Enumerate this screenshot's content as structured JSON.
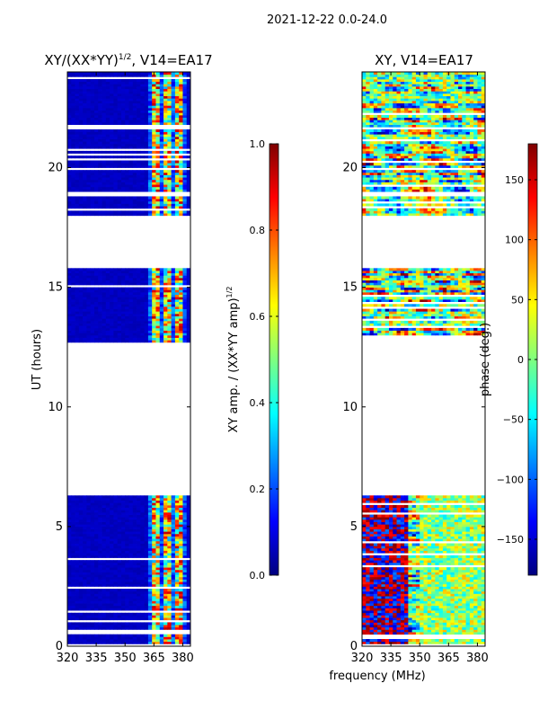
{
  "figure_title": "2021-12-22 0.0-24.0",
  "xlabel_shared": "frequency (MHz)",
  "colors": {
    "jet": [
      "#00007f",
      "#0000ff",
      "#007fff",
      "#00ffff",
      "#7fff7f",
      "#ffff00",
      "#ff7f00",
      "#ff0000",
      "#7f0000"
    ],
    "background": "#ffffff"
  },
  "chart_data": [
    {
      "type": "heatmap",
      "title": "XY/(XX*YY)",
      "title_superscript": "1/2",
      "title_suffix": ", V14=EA17",
      "xlabel": "",
      "ylabel": "UT (hours)",
      "xlim": [
        320,
        384
      ],
      "ylim": [
        0,
        24
      ],
      "xticks": [
        320,
        335,
        350,
        365,
        380
      ],
      "yticks": [
        0,
        5,
        10,
        15,
        20
      ],
      "z_range": [
        0.0,
        1.0
      ],
      "data_bands_hours": [
        [
          0.0,
          6.3
        ],
        [
          12.7,
          15.9
        ],
        [
          18.0,
          18.8
        ],
        [
          19.0,
          24.0
        ]
      ],
      "dominant_value": 0.05,
      "active_channel_range_mhz": [
        362,
        382
      ],
      "colorbar": {
        "label": "XY amp. / (XX*YY amp)",
        "label_superscript": "1/2",
        "range": [
          0.0,
          1.0
        ],
        "ticks": [
          "0.0",
          "0.2",
          "0.4",
          "0.6",
          "0.8",
          "1.0"
        ]
      }
    },
    {
      "type": "heatmap",
      "title": "XY, V14=EA17",
      "xlabel": "",
      "ylabel": "",
      "xlim": [
        320,
        384
      ],
      "ylim": [
        0,
        24
      ],
      "xticks": [
        320,
        335,
        350,
        365,
        380
      ],
      "yticks": [
        0,
        5,
        10,
        15,
        20
      ],
      "z_range": [
        -180,
        180
      ],
      "data_bands_hours": [
        [
          0.0,
          6.3
        ],
        [
          12.7,
          15.9
        ],
        [
          18.0,
          18.8
        ],
        [
          19.0,
          24.0
        ]
      ],
      "colorbar": {
        "label": "phase (deg.)",
        "range": [
          -180,
          180
        ],
        "ticks": [
          "150",
          "100",
          "50",
          "0",
          "−50",
          "−100",
          "−150"
        ],
        "tick_values": [
          150,
          100,
          50,
          0,
          -50,
          -100,
          -150
        ]
      }
    }
  ]
}
